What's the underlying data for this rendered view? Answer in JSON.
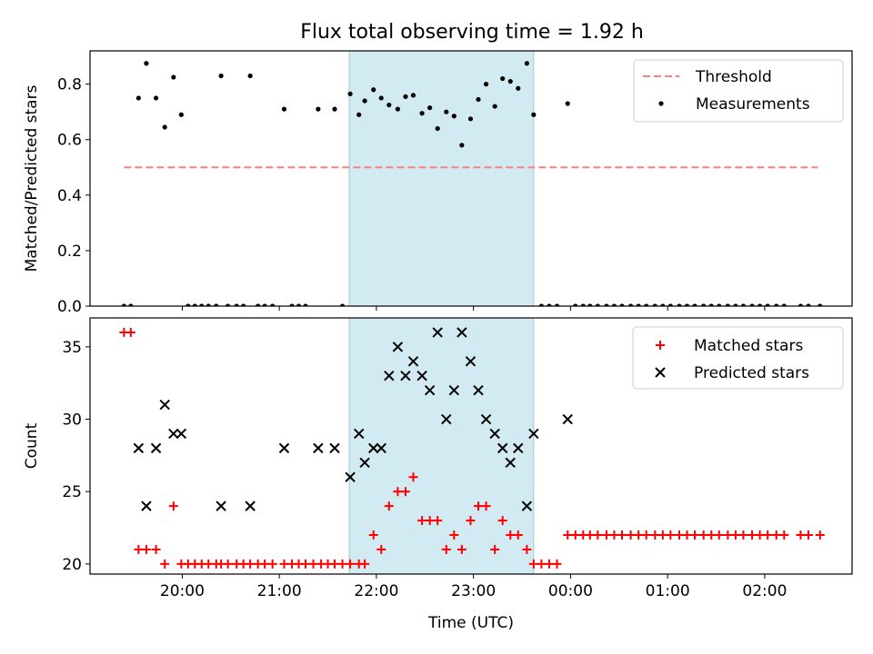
{
  "title": "Flux total observing time = 1.92 h",
  "colors": {
    "threshold": "#ff7f7f",
    "measurement": "#000000",
    "matched": "#ff0000",
    "predicted": "#000000",
    "band": "#add8e6"
  },
  "chart_data": [
    {
      "type": "scatter",
      "ylabel": "Matched/Predicted stars",
      "xlim": [
        19.05,
        2.9
      ],
      "ylim": [
        0,
        0.92
      ],
      "x_tick_labels": [
        "20:00",
        "21:00",
        "22:00",
        "23:00",
        "00:00",
        "01:00",
        "02:00"
      ],
      "y_ticks": [
        "0.0",
        "0.2",
        "0.4",
        "0.6",
        "0.8"
      ],
      "highlight_band": [
        21.72,
        23.62
      ],
      "legend_position": "upper right",
      "threshold": {
        "name": "Threshold",
        "y": 0.5,
        "x_range": [
          19.4,
          2.55
        ]
      },
      "series": [
        {
          "name": "Measurements",
          "points": [
            [
              19.4,
              0
            ],
            [
              19.47,
              0
            ],
            [
              19.55,
              0.75
            ],
            [
              19.63,
              0.875
            ],
            [
              19.73,
              0.75
            ],
            [
              19.82,
              0.645
            ],
            [
              19.91,
              0.825
            ],
            [
              19.99,
              0.69
            ],
            [
              20.06,
              0
            ],
            [
              20.13,
              0
            ],
            [
              20.2,
              0
            ],
            [
              20.27,
              0
            ],
            [
              20.35,
              0
            ],
            [
              20.4,
              0.83
            ],
            [
              20.47,
              0
            ],
            [
              20.56,
              0
            ],
            [
              20.63,
              0
            ],
            [
              20.7,
              0.83
            ],
            [
              20.78,
              0
            ],
            [
              20.85,
              0
            ],
            [
              20.93,
              0
            ],
            [
              21.05,
              0.71
            ],
            [
              21.13,
              0
            ],
            [
              21.2,
              0
            ],
            [
              21.27,
              0
            ],
            [
              21.4,
              0.71
            ],
            [
              21.57,
              0.71
            ],
            [
              21.65,
              0
            ],
            [
              21.73,
              0.765
            ],
            [
              21.82,
              0.69
            ],
            [
              21.88,
              0.74
            ],
            [
              21.97,
              0.78
            ],
            [
              22.05,
              0.75
            ],
            [
              22.13,
              0.725
            ],
            [
              22.22,
              0.71
            ],
            [
              22.3,
              0.755
            ],
            [
              22.38,
              0.76
            ],
            [
              22.47,
              0.695
            ],
            [
              22.55,
              0.715
            ],
            [
              22.63,
              0.64
            ],
            [
              22.72,
              0.7
            ],
            [
              22.8,
              0.685
            ],
            [
              22.88,
              0.58
            ],
            [
              22.97,
              0.675
            ],
            [
              23.05,
              0.745
            ],
            [
              23.13,
              0.8
            ],
            [
              23.22,
              0.72
            ],
            [
              23.3,
              0.82
            ],
            [
              23.38,
              0.81
            ],
            [
              23.46,
              0.785
            ],
            [
              23.55,
              0.875
            ],
            [
              23.62,
              0.69
            ],
            [
              23.7,
              0
            ],
            [
              23.78,
              0
            ],
            [
              23.86,
              0
            ],
            [
              23.97,
              0.73
            ],
            [
              24.05,
              0
            ],
            [
              24.13,
              0
            ],
            [
              24.2,
              0
            ],
            [
              24.28,
              0
            ],
            [
              24.37,
              0
            ],
            [
              24.45,
              0
            ],
            [
              24.53,
              0
            ],
            [
              24.62,
              0
            ],
            [
              24.7,
              0
            ],
            [
              24.78,
              0
            ],
            [
              24.87,
              0
            ],
            [
              24.95,
              0
            ],
            [
              25.03,
              0
            ],
            [
              25.12,
              0
            ],
            [
              25.2,
              0
            ],
            [
              25.28,
              0
            ],
            [
              25.37,
              0
            ],
            [
              25.45,
              0
            ],
            [
              25.53,
              0
            ],
            [
              25.62,
              0
            ],
            [
              25.7,
              0
            ],
            [
              25.78,
              0
            ],
            [
              25.87,
              0
            ],
            [
              25.95,
              0
            ],
            [
              26.03,
              0
            ],
            [
              26.12,
              0
            ],
            [
              26.2,
              0
            ],
            [
              26.37,
              0
            ],
            [
              26.45,
              0
            ],
            [
              26.57,
              0
            ]
          ]
        }
      ]
    },
    {
      "type": "scatter",
      "xlabel": "Time (UTC)",
      "ylabel": "Count",
      "xlim": [
        19.05,
        2.9
      ],
      "ylim": [
        19.3,
        37
      ],
      "x_tick_labels": [
        "20:00",
        "21:00",
        "22:00",
        "23:00",
        "00:00",
        "01:00",
        "02:00"
      ],
      "y_ticks": [
        "20",
        "25",
        "30",
        "35"
      ],
      "highlight_band": [
        21.72,
        23.62
      ],
      "legend_position": "upper right",
      "series": [
        {
          "name": "Matched stars",
          "marker": "+",
          "points": [
            [
              19.4,
              36
            ],
            [
              19.47,
              36
            ],
            [
              19.55,
              21
            ],
            [
              19.63,
              21
            ],
            [
              19.73,
              21
            ],
            [
              19.82,
              20
            ],
            [
              19.91,
              24
            ],
            [
              19.99,
              20
            ],
            [
              20.06,
              20
            ],
            [
              20.13,
              20
            ],
            [
              20.2,
              20
            ],
            [
              20.27,
              20
            ],
            [
              20.35,
              20
            ],
            [
              20.4,
              20
            ],
            [
              20.47,
              20
            ],
            [
              20.56,
              20
            ],
            [
              20.63,
              20
            ],
            [
              20.7,
              20
            ],
            [
              20.78,
              20
            ],
            [
              20.85,
              20
            ],
            [
              20.93,
              20
            ],
            [
              21.05,
              20
            ],
            [
              21.13,
              20
            ],
            [
              21.2,
              20
            ],
            [
              21.27,
              20
            ],
            [
              21.35,
              20
            ],
            [
              21.43,
              20
            ],
            [
              21.5,
              20
            ],
            [
              21.57,
              20
            ],
            [
              21.65,
              20
            ],
            [
              21.73,
              20
            ],
            [
              21.82,
              20
            ],
            [
              21.88,
              20
            ],
            [
              21.97,
              22
            ],
            [
              22.05,
              21
            ],
            [
              22.13,
              24
            ],
            [
              22.22,
              25
            ],
            [
              22.3,
              25
            ],
            [
              22.38,
              26
            ],
            [
              22.47,
              23
            ],
            [
              22.55,
              23
            ],
            [
              22.63,
              23
            ],
            [
              22.72,
              21
            ],
            [
              22.8,
              22
            ],
            [
              22.88,
              21
            ],
            [
              22.97,
              23
            ],
            [
              23.05,
              24
            ],
            [
              23.13,
              24
            ],
            [
              23.22,
              21
            ],
            [
              23.3,
              23
            ],
            [
              23.38,
              22
            ],
            [
              23.46,
              22
            ],
            [
              23.55,
              21
            ],
            [
              23.62,
              20
            ],
            [
              23.7,
              20
            ],
            [
              23.78,
              20
            ],
            [
              23.86,
              20
            ],
            [
              23.97,
              22
            ],
            [
              24.05,
              22
            ],
            [
              24.13,
              22
            ],
            [
              24.2,
              22
            ],
            [
              24.28,
              22
            ],
            [
              24.37,
              22
            ],
            [
              24.45,
              22
            ],
            [
              24.53,
              22
            ],
            [
              24.62,
              22
            ],
            [
              24.7,
              22
            ],
            [
              24.78,
              22
            ],
            [
              24.87,
              22
            ],
            [
              24.95,
              22
            ],
            [
              25.03,
              22
            ],
            [
              25.12,
              22
            ],
            [
              25.2,
              22
            ],
            [
              25.28,
              22
            ],
            [
              25.37,
              22
            ],
            [
              25.45,
              22
            ],
            [
              25.53,
              22
            ],
            [
              25.62,
              22
            ],
            [
              25.7,
              22
            ],
            [
              25.78,
              22
            ],
            [
              25.87,
              22
            ],
            [
              25.95,
              22
            ],
            [
              26.03,
              22
            ],
            [
              26.12,
              22
            ],
            [
              26.2,
              22
            ],
            [
              26.37,
              22
            ],
            [
              26.45,
              22
            ],
            [
              26.57,
              22
            ]
          ]
        },
        {
          "name": "Predicted stars",
          "marker": "x",
          "points": [
            [
              19.55,
              28
            ],
            [
              19.63,
              24
            ],
            [
              19.73,
              28
            ],
            [
              19.82,
              31
            ],
            [
              19.91,
              29
            ],
            [
              19.99,
              29
            ],
            [
              20.4,
              24
            ],
            [
              20.7,
              24
            ],
            [
              21.05,
              28
            ],
            [
              21.4,
              28
            ],
            [
              21.57,
              28
            ],
            [
              21.73,
              26
            ],
            [
              21.82,
              29
            ],
            [
              21.88,
              27
            ],
            [
              21.97,
              28
            ],
            [
              22.05,
              28
            ],
            [
              22.13,
              33
            ],
            [
              22.22,
              35
            ],
            [
              22.3,
              33
            ],
            [
              22.38,
              34
            ],
            [
              22.47,
              33
            ],
            [
              22.55,
              32
            ],
            [
              22.63,
              36
            ],
            [
              22.72,
              30
            ],
            [
              22.8,
              32
            ],
            [
              22.88,
              36
            ],
            [
              22.97,
              34
            ],
            [
              23.05,
              32
            ],
            [
              23.13,
              30
            ],
            [
              23.22,
              29
            ],
            [
              23.3,
              28
            ],
            [
              23.38,
              27
            ],
            [
              23.46,
              28
            ],
            [
              23.55,
              24
            ],
            [
              23.62,
              29
            ],
            [
              23.97,
              30
            ]
          ]
        }
      ]
    }
  ]
}
